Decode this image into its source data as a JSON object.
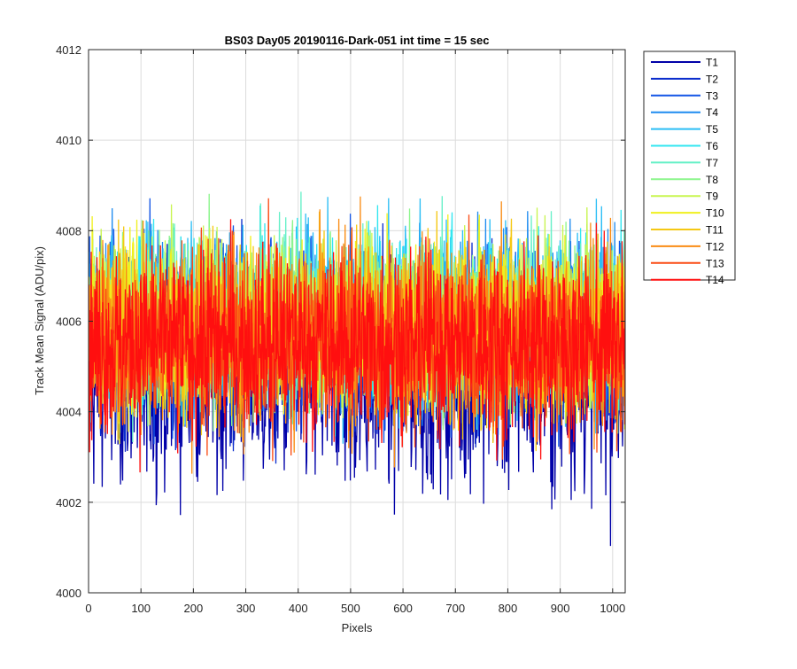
{
  "chart_data": {
    "type": "line",
    "title": "BS03 Day05 20190116-Dark-051 int time = 15 sec",
    "xlabel": "Pixels",
    "ylabel": "Track Mean Signal (ADU/pix)",
    "xlim": [
      0,
      1024
    ],
    "ylim": [
      4000,
      4012
    ],
    "xticks": [
      0,
      100,
      200,
      300,
      400,
      500,
      600,
      700,
      800,
      900,
      1000
    ],
    "yticks": [
      4000,
      4002,
      4004,
      4006,
      4008,
      4010,
      4012
    ],
    "grid": true,
    "legend_position": "outside-right",
    "n_points": 1024,
    "noise_note": "Each series is dense pixel-to-pixel noise; values listed are approximate band statistics read from the plot.",
    "series": [
      {
        "name": "T1",
        "color": "#0000a8",
        "mean": 4004.6,
        "min": 4001.0,
        "max": 4009.6
      },
      {
        "name": "T2",
        "color": "#0a2ccc",
        "mean": 4005.5,
        "min": 4002.7,
        "max": 4008.8
      },
      {
        "name": "T3",
        "color": "#1456e6",
        "mean": 4005.8,
        "min": 4002.9,
        "max": 4009.2
      },
      {
        "name": "T4",
        "color": "#1f8cf0",
        "mean": 4006.0,
        "min": 4003.1,
        "max": 4010.9
      },
      {
        "name": "T5",
        "color": "#2bbef5",
        "mean": 4006.1,
        "min": 4002.8,
        "max": 4011.0
      },
      {
        "name": "T6",
        "color": "#33e6f0",
        "mean": 4006.1,
        "min": 4003.2,
        "max": 4010.0
      },
      {
        "name": "T7",
        "color": "#66f0c8",
        "mean": 4006.1,
        "min": 4003.3,
        "max": 4010.0
      },
      {
        "name": "T8",
        "color": "#8cf58c",
        "mean": 4006.0,
        "min": 4003.2,
        "max": 4010.4
      },
      {
        "name": "T9",
        "color": "#c8f550",
        "mean": 4006.0,
        "min": 4003.0,
        "max": 4010.8
      },
      {
        "name": "T10",
        "color": "#f0f01e",
        "mean": 4005.9,
        "min": 4002.8,
        "max": 4010.9
      },
      {
        "name": "T11",
        "color": "#f5c814",
        "mean": 4005.8,
        "min": 4002.7,
        "max": 4010.2
      },
      {
        "name": "T12",
        "color": "#fa8c14",
        "mean": 4005.7,
        "min": 4002.6,
        "max": 4010.3
      },
      {
        "name": "T13",
        "color": "#fa4b14",
        "mean": 4005.6,
        "min": 4002.5,
        "max": 4010.1
      },
      {
        "name": "T14",
        "color": "#ff0f0f",
        "mean": 4005.5,
        "min": 4002.3,
        "max": 4009.6
      }
    ]
  }
}
